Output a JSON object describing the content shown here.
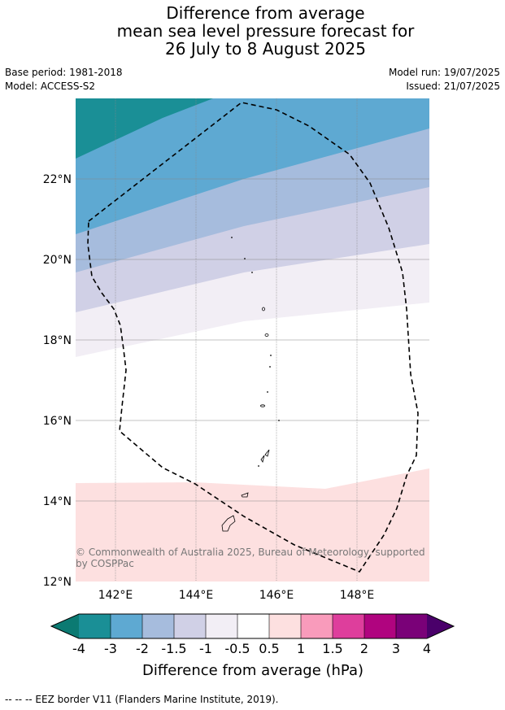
{
  "title": {
    "line1": "Difference from average",
    "line2": "mean sea level pressure forecast for",
    "line3": "26 July to 8 August 2025"
  },
  "meta": {
    "base_period": "Base period: 1981-2018",
    "model": "Model: ACCESS-S2",
    "model_run": "Model run: 19/07/2025",
    "issued": "Issued: 21/07/2025"
  },
  "map": {
    "lat_labels": [
      "22°N",
      "20°N",
      "18°N",
      "16°N",
      "14°N",
      "12°N"
    ],
    "lon_labels": [
      "142°E",
      "144°E",
      "146°E",
      "148°E"
    ],
    "copyright": "© Commonwealth of Australia 2025, Bureau of Meteorology, supported by COSPPac"
  },
  "colorbar": {
    "labels": [
      "-4",
      "-3",
      "-2",
      "-1.5",
      "-1",
      "-0.5",
      "0.5",
      "1",
      "1.5",
      "2",
      "3",
      "4"
    ],
    "colors": [
      "#0b7a72",
      "#1a8f96",
      "#5ea9d2",
      "#a6bcdd",
      "#d0d0e6",
      "#f2eef5",
      "#ffffff",
      "#fde0e0",
      "#f99bbb",
      "#de3e9c",
      "#b0047f",
      "#7a0178",
      "#4a006a"
    ],
    "title": "Difference from average (hPa)"
  },
  "footer": "--  --  -- EEZ border V11 (Flanders Marine Institute, 2019)."
}
